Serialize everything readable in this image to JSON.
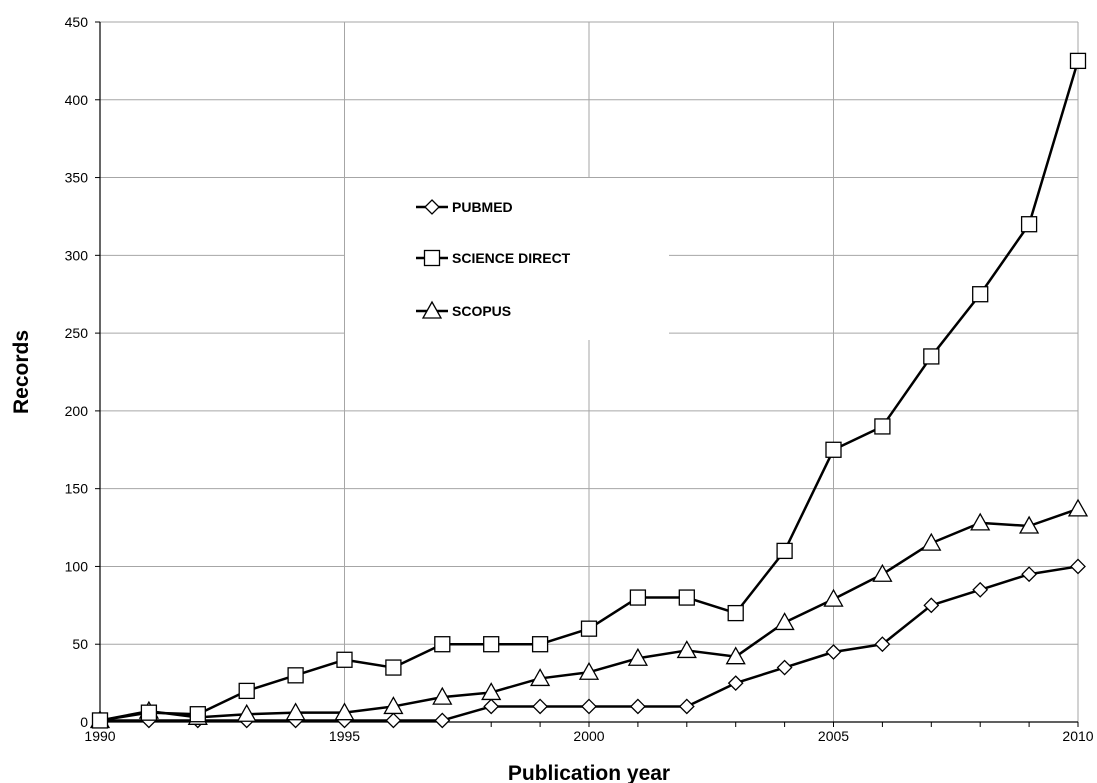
{
  "chart_data": {
    "type": "line",
    "title": "",
    "xlabel": "Publication year",
    "ylabel": "Records",
    "xlim": [
      1990,
      2010
    ],
    "ylim": [
      0,
      450
    ],
    "x_ticks": [
      1990,
      1995,
      2000,
      2005,
      2010
    ],
    "y_ticks": [
      0,
      50,
      100,
      150,
      200,
      250,
      300,
      350,
      400,
      450
    ],
    "grid": true,
    "legend_position": "upper-center",
    "x": [
      1990,
      1991,
      1992,
      1993,
      1994,
      1995,
      1996,
      1997,
      1998,
      1999,
      2000,
      2001,
      2002,
      2003,
      2004,
      2005,
      2006,
      2007,
      2008,
      2009,
      2010
    ],
    "series": [
      {
        "name": "PUBMED",
        "marker": "diamond",
        "values": [
          1,
          1,
          1,
          1,
          1,
          1,
          1,
          1,
          10,
          10,
          10,
          10,
          10,
          25,
          35,
          45,
          50,
          75,
          85,
          95,
          100
        ]
      },
      {
        "name": "SCIENCE DIRECT",
        "marker": "square",
        "values": [
          1,
          6,
          5,
          20,
          30,
          40,
          35,
          50,
          50,
          50,
          60,
          80,
          80,
          70,
          110,
          175,
          190,
          235,
          275,
          320,
          425
        ]
      },
      {
        "name": "SCOPUS",
        "marker": "triangle",
        "values": [
          1,
          7,
          3,
          5,
          6,
          6,
          10,
          16,
          19,
          28,
          32,
          41,
          46,
          42,
          64,
          79,
          95,
          115,
          128,
          126,
          137
        ]
      }
    ],
    "colors": {
      "line": "#000000",
      "marker_fill": "#ffffff",
      "grid": "#a6a6a6"
    }
  }
}
